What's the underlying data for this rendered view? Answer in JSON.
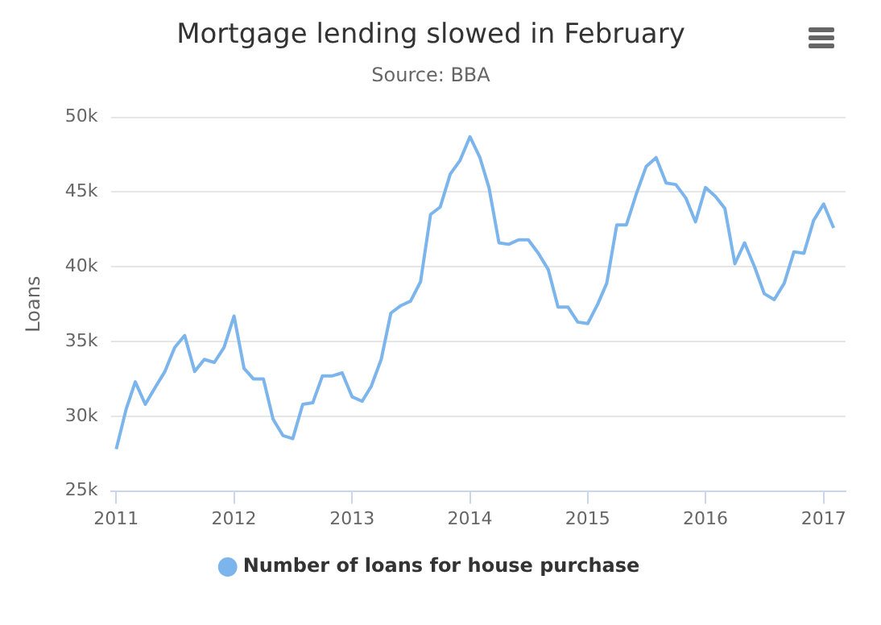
{
  "chart_data": {
    "type": "line",
    "title": "Mortgage lending slowed in February",
    "subtitle": "Source: BBA",
    "ylabel": "Loans",
    "x": [
      "2011-01",
      "2011-02",
      "2011-03",
      "2011-04",
      "2011-05",
      "2011-06",
      "2011-07",
      "2011-08",
      "2011-09",
      "2011-10",
      "2011-11",
      "2011-12",
      "2012-01",
      "2012-02",
      "2012-03",
      "2012-04",
      "2012-05",
      "2012-06",
      "2012-07",
      "2012-08",
      "2012-09",
      "2012-10",
      "2012-11",
      "2012-12",
      "2013-01",
      "2013-02",
      "2013-03",
      "2013-04",
      "2013-05",
      "2013-06",
      "2013-07",
      "2013-08",
      "2013-09",
      "2013-10",
      "2013-11",
      "2013-12",
      "2014-01",
      "2014-02",
      "2014-03",
      "2014-04",
      "2014-05",
      "2014-06",
      "2014-07",
      "2014-08",
      "2014-09",
      "2014-10",
      "2014-11",
      "2014-12",
      "2015-01",
      "2015-02",
      "2015-03",
      "2015-04",
      "2015-05",
      "2015-06",
      "2015-07",
      "2015-08",
      "2015-09",
      "2015-10",
      "2015-11",
      "2015-12",
      "2016-01",
      "2016-02",
      "2016-03",
      "2016-04",
      "2016-05",
      "2016-06",
      "2016-07",
      "2016-08",
      "2016-09",
      "2016-10",
      "2016-11",
      "2016-12",
      "2017-01",
      "2017-02"
    ],
    "series": [
      {
        "name": "Number of loans for house purchase",
        "color": "#7cb5ec",
        "values": [
          27800,
          30500,
          32300,
          30800,
          31900,
          33000,
          34600,
          35400,
          33000,
          33800,
          33600,
          34600,
          36700,
          33200,
          32500,
          32500,
          29800,
          28700,
          28500,
          30800,
          30900,
          32700,
          32700,
          32900,
          31300,
          31000,
          32000,
          33800,
          36900,
          37400,
          37700,
          39000,
          43500,
          44000,
          46200,
          47100,
          48700,
          47300,
          45300,
          41600,
          41500,
          41800,
          41800,
          40900,
          39800,
          37300,
          37300,
          36300,
          36200,
          37500,
          38900,
          42800,
          42800,
          44900,
          46700,
          47300,
          45600,
          45500,
          44600,
          43000,
          45300,
          44700,
          43900,
          40200,
          41600,
          40000,
          38200,
          37800,
          38900,
          41000,
          40900,
          43100,
          44200,
          42600
        ]
      }
    ],
    "xlim": [
      "2010-12-15",
      "2017-03-10"
    ],
    "xticks": [
      "2011",
      "2012",
      "2013",
      "2014",
      "2015",
      "2016",
      "2017"
    ],
    "ylim": [
      25000,
      50000
    ],
    "yticks": [
      {
        "value": 25000,
        "label": "25k"
      },
      {
        "value": 30000,
        "label": "30k"
      },
      {
        "value": 35000,
        "label": "35k"
      },
      {
        "value": 40000,
        "label": "40k"
      },
      {
        "value": 45000,
        "label": "45k"
      },
      {
        "value": 50000,
        "label": "50k"
      }
    ],
    "grid": "y",
    "legend": "bottom",
    "marker": "none",
    "line_style": "solid"
  }
}
